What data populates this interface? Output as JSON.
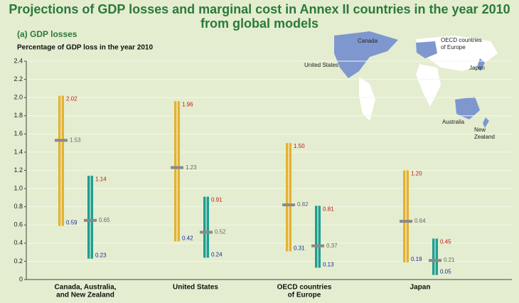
{
  "chart_data": {
    "type": "range",
    "title": [
      "Projections of GDP losses and marginal cost in Annex II countries in the year 2010",
      "from global models"
    ],
    "subtitle": "(a) GDP losses",
    "y_label": "Percentage of GDP loss in the year 2010",
    "categories": [
      [
        "Canada, Australia,",
        "and New Zealand"
      ],
      [
        "United States"
      ],
      [
        "OECD countries",
        "of Europe"
      ],
      [
        "Japan"
      ]
    ],
    "series": [
      {
        "color": "#e2b230",
        "max": [
          2.02,
          1.96,
          1.5,
          1.2
        ],
        "median": [
          1.53,
          1.23,
          0.82,
          0.64
        ],
        "min": [
          0.59,
          0.42,
          0.31,
          0.19
        ],
        "max_labels": [
          "2.02",
          "1.96",
          "1.50",
          "1.20"
        ],
        "median_labels": [
          "1.53",
          "1.23",
          "0.82",
          "0.64"
        ],
        "min_labels": [
          "0.59",
          "0.42",
          "0.31",
          "0.19"
        ]
      },
      {
        "color": "#1f9e8e",
        "max": [
          1.14,
          0.91,
          0.81,
          0.45
        ],
        "median": [
          0.65,
          0.52,
          0.37,
          0.21
        ],
        "min": [
          0.23,
          0.24,
          0.13,
          0.05
        ],
        "max_labels": [
          "1.14",
          "0.91",
          "0.81",
          "0.45"
        ],
        "median_labels": [
          "0.65",
          "0.52",
          "0.37",
          "0.21"
        ],
        "min_labels": [
          "0.23",
          "0.24",
          "0.13",
          "0.05"
        ]
      }
    ],
    "ylim": [
      0,
      2.4
    ],
    "yticks": [
      0,
      0.2,
      0.4,
      0.6,
      0.8,
      {
        "value": 1,
        "label": "1.0"
      },
      1.2,
      1.4,
      1.6,
      1.8,
      {
        "value": 2,
        "label": "2.0"
      },
      2.2,
      2.4
    ],
    "grid": true
  },
  "map": {
    "labels": [
      [
        "Canada"
      ],
      [
        "OECD countries",
        "of Europe"
      ],
      [
        "United States"
      ],
      [
        "Japan"
      ],
      [
        "Australia"
      ],
      [
        "New",
        "Zealand"
      ]
    ]
  }
}
